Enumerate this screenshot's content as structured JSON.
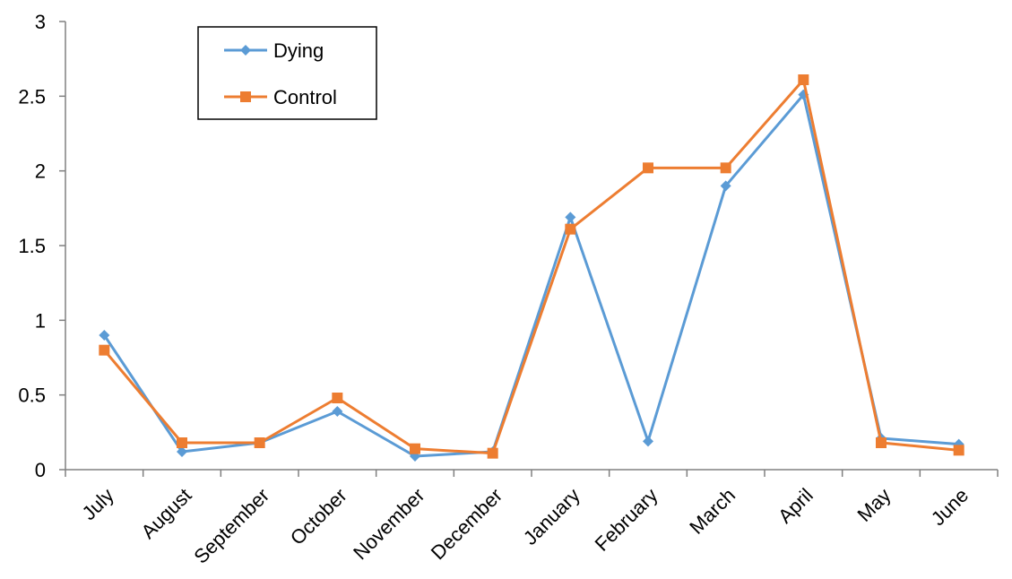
{
  "chart_data": {
    "type": "line",
    "categories": [
      "July",
      "August",
      "September",
      "October",
      "November",
      "December",
      "January",
      "February",
      "March",
      "April",
      "May",
      "June"
    ],
    "series": [
      {
        "name": "Dying",
        "color": "#5b9bd5",
        "marker": "diamond",
        "values": [
          0.9,
          0.12,
          0.18,
          0.39,
          0.09,
          0.12,
          1.69,
          0.19,
          1.9,
          2.51,
          0.21,
          0.17
        ]
      },
      {
        "name": "Control",
        "color": "#ed7d31",
        "marker": "square",
        "values": [
          0.8,
          0.18,
          0.18,
          0.48,
          0.14,
          0.11,
          1.61,
          2.02,
          2.02,
          2.61,
          0.18,
          0.13
        ]
      }
    ],
    "ylim": [
      0,
      3
    ],
    "yticks": [
      "0",
      "0.5",
      "1",
      "1.5",
      "2",
      "2.5",
      "3"
    ],
    "legend_position": "top-left",
    "grid": false
  }
}
